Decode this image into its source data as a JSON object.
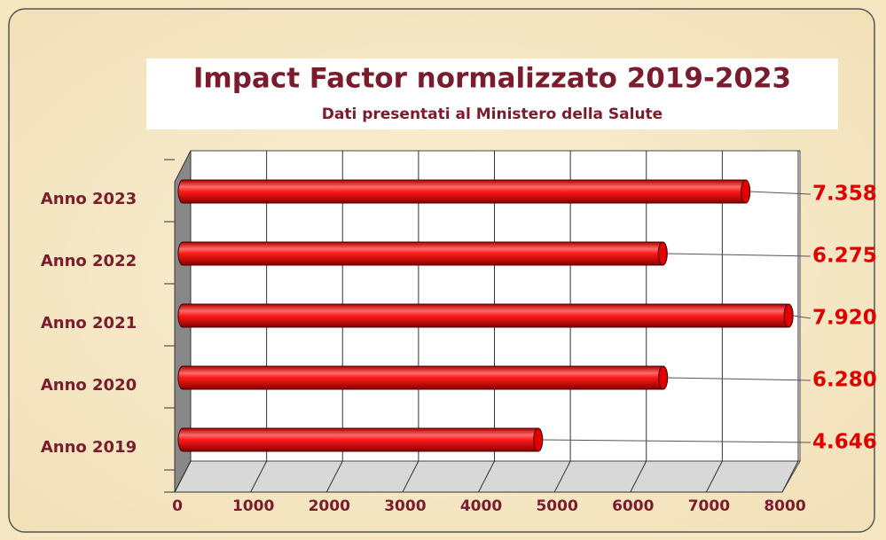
{
  "chart_data": {
    "type": "bar",
    "orientation": "horizontal",
    "title": "Impact Factor normalizzato 2019-2023",
    "subtitle": "Dati presentati al Ministero della Salute",
    "categories": [
      "Anno 2019",
      "Anno 2020",
      "Anno 2021",
      "Anno 2022",
      "Anno 2023"
    ],
    "values": [
      4646,
      6280,
      7920,
      6275,
      7358
    ],
    "value_labels": [
      "4.646",
      "6.280",
      "7.920",
      "6.275",
      "7.358"
    ],
    "color": "#ff0000",
    "xlim": [
      0,
      8000
    ],
    "xticks": [
      0,
      1000,
      2000,
      3000,
      4000,
      5000,
      6000,
      7000,
      8000
    ],
    "grid": true
  }
}
